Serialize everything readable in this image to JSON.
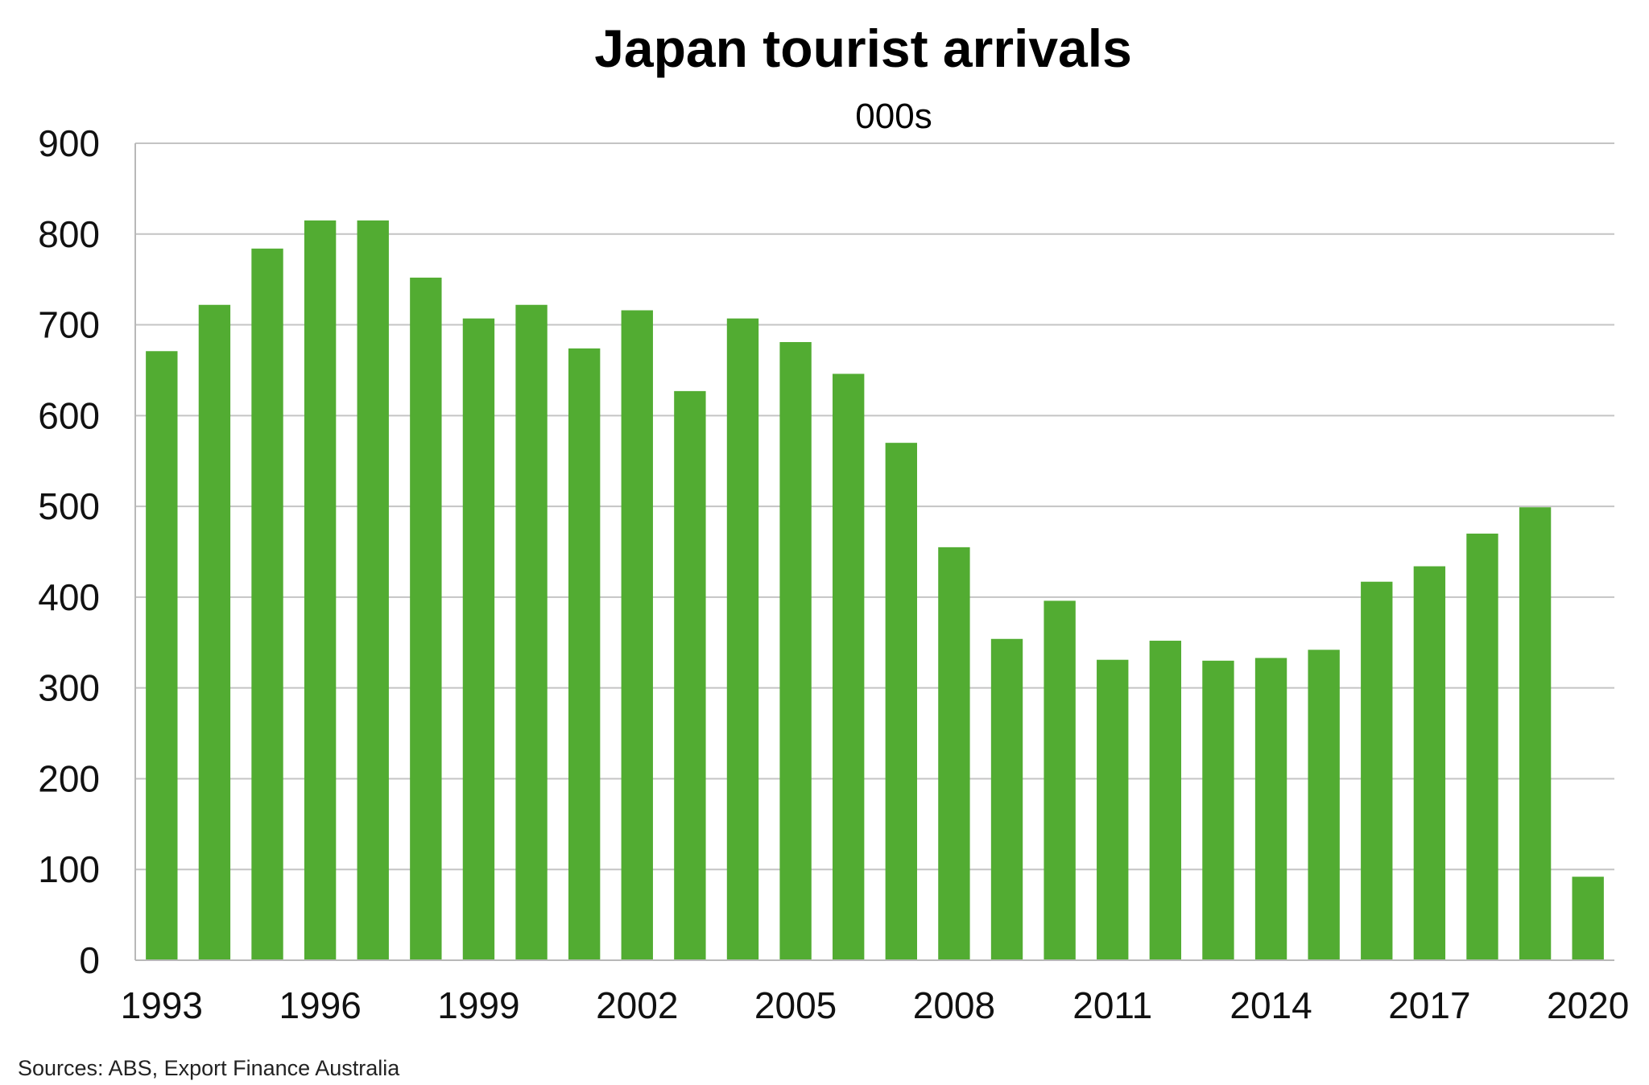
{
  "chart_data": {
    "type": "bar",
    "title": "Japan tourist arrivals",
    "subtitle": "000s",
    "source": "Sources: ABS, Export Finance Australia",
    "xlabel": "",
    "ylabel": "",
    "ylim": [
      0,
      900
    ],
    "yticks": [
      0,
      100,
      200,
      300,
      400,
      500,
      600,
      700,
      800,
      900
    ],
    "xtick_labels": [
      "1993",
      "1996",
      "1999",
      "2002",
      "2005",
      "2008",
      "2011",
      "2014",
      "2017",
      "2020"
    ],
    "grid": true,
    "bar_color": "#52ac32",
    "categories": [
      "1993",
      "1994",
      "1995",
      "1996",
      "1997",
      "1998",
      "1999",
      "2000",
      "2001",
      "2002",
      "2003",
      "2004",
      "2005",
      "2006",
      "2007",
      "2008",
      "2009",
      "2010",
      "2011",
      "2012",
      "2013",
      "2014",
      "2015",
      "2016",
      "2017",
      "2018",
      "2019",
      "2020"
    ],
    "values": [
      671,
      722,
      784,
      815,
      815,
      752,
      707,
      722,
      674,
      716,
      627,
      707,
      681,
      646,
      570,
      455,
      354,
      396,
      331,
      352,
      330,
      333,
      342,
      417,
      434,
      470,
      499,
      92
    ]
  }
}
